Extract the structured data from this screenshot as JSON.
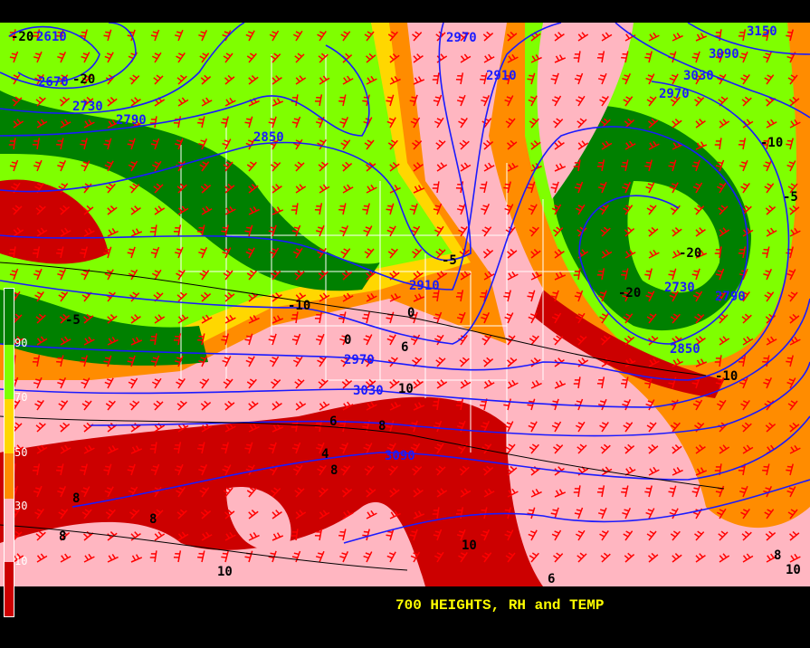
{
  "title": "700 HEIGHTS, RH and TEMP",
  "colorbar": {
    "labels": [
      "90",
      "70",
      "50",
      "30",
      "10"
    ],
    "colors": [
      "#008000",
      "#7fff00",
      "#ffd700",
      "#ff8c00",
      "#ffb6c1",
      "#cc0000"
    ]
  },
  "colors": {
    "height_contours": "#1a1aff",
    "wind_barbs": "#ff0000",
    "borders": "#ffffff",
    "temp_contours": "#000000",
    "title": "#ffff00"
  },
  "height_labels": [
    "2610",
    "2670",
    "2730",
    "2790",
    "2850",
    "2970",
    "2910",
    "3150",
    "3090",
    "3030",
    "2970",
    "2730",
    "2790",
    "2850",
    "2910",
    "2970",
    "3030",
    "3090"
  ],
  "temp_labels": [
    "-20",
    "-20",
    "-10",
    "-5",
    "-10",
    "-5",
    "-20",
    "-20",
    "-10",
    "-5",
    "0",
    "0",
    "6",
    "4",
    "8",
    "8",
    "6",
    "8",
    "8",
    "8",
    "10",
    "10",
    "10",
    "8",
    "6",
    "10"
  ]
}
